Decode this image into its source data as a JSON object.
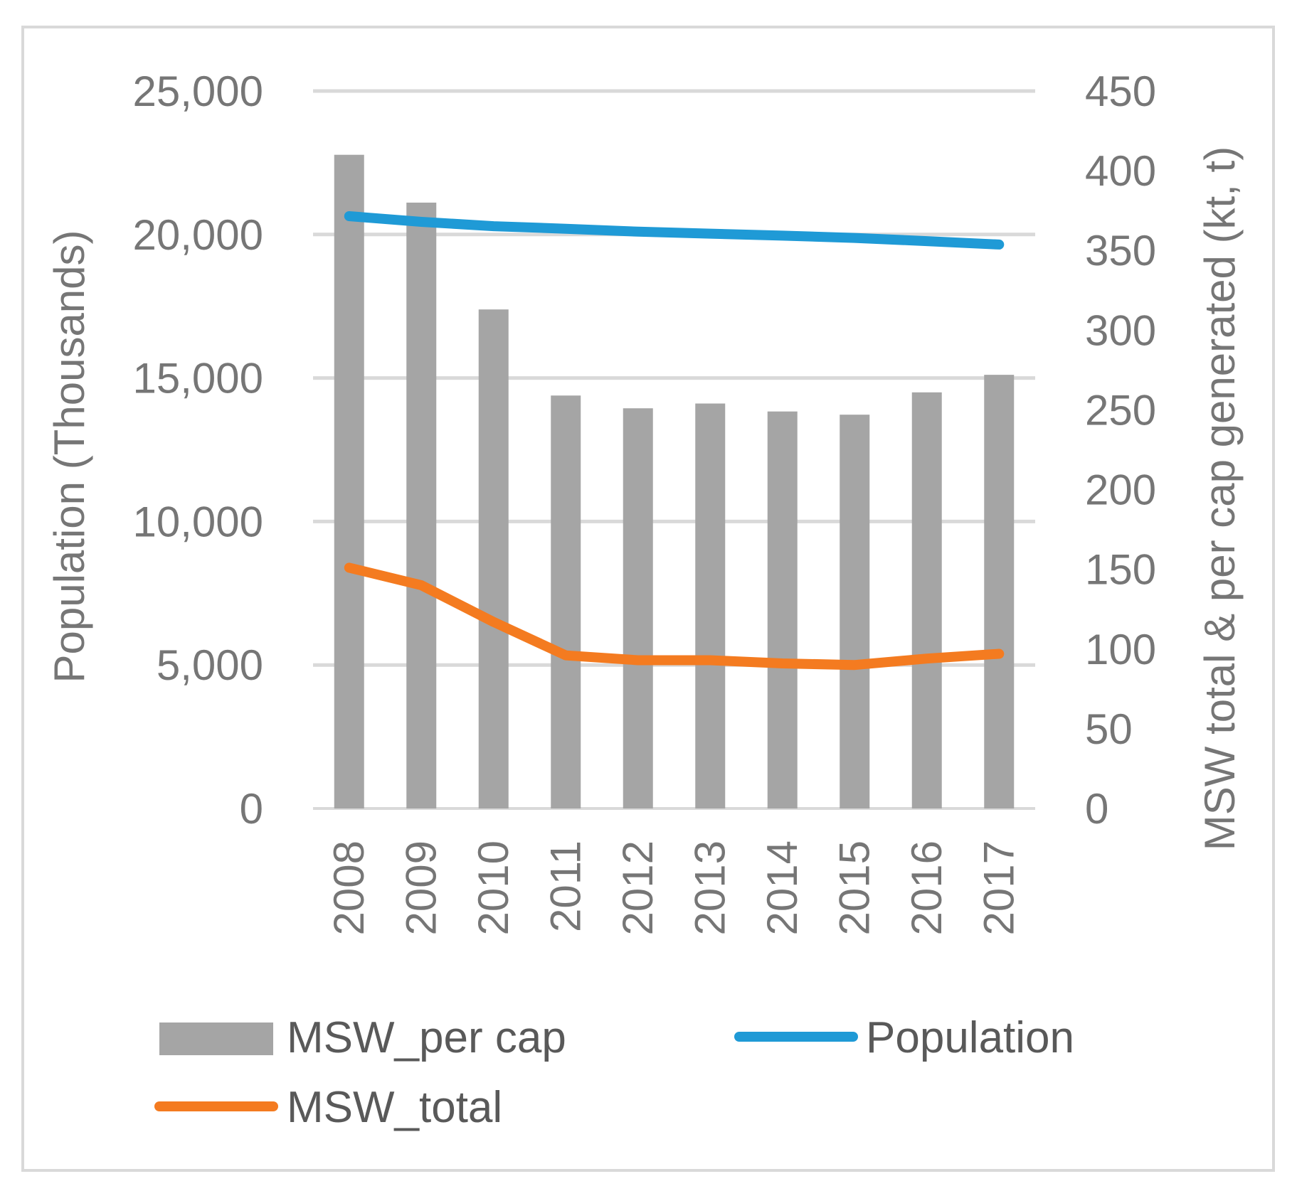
{
  "chart_data": {
    "type": "bar+line",
    "title": "",
    "categories": [
      "2008",
      "2009",
      "2010",
      "2011",
      "2012",
      "2013",
      "2014",
      "2015",
      "2016",
      "2017"
    ],
    "series": [
      {
        "name": "MSW_per cap",
        "kind": "bar",
        "axis": "right",
        "color": "#a5a5a5",
        "values": [
          410,
          380,
          313,
          259,
          251,
          254,
          249,
          247,
          261,
          272
        ]
      },
      {
        "name": "Population",
        "kind": "line",
        "axis": "left",
        "color": "#1f9ad6",
        "values": [
          20640,
          20440,
          20290,
          20200,
          20100,
          20030,
          19960,
          19880,
          19770,
          19650
        ]
      },
      {
        "name": "MSW_total",
        "kind": "line",
        "axis": "right",
        "color": "#f47b20",
        "values": [
          151,
          140,
          117,
          96,
          93,
          93,
          91,
          90,
          94,
          97
        ]
      }
    ],
    "y_left": {
      "label": "Population (Thousands)",
      "lim": [
        0,
        25000
      ],
      "ticks": [
        0,
        5000,
        10000,
        15000,
        20000,
        25000
      ],
      "tick_labels": [
        "0",
        "5,000",
        "10,000",
        "15,000",
        "20,000",
        "25,000"
      ]
    },
    "y_right": {
      "label": "MSW total & per cap generated (kt, t)",
      "lim": [
        0,
        450
      ],
      "ticks": [
        0,
        50,
        100,
        150,
        200,
        250,
        300,
        350,
        400,
        450
      ],
      "tick_labels": [
        "0",
        "50",
        "100",
        "150",
        "200",
        "250",
        "300",
        "350",
        "400",
        "450"
      ]
    },
    "grid": true,
    "gridline_color": "#d9d9d9",
    "legend_position": "bottom"
  }
}
